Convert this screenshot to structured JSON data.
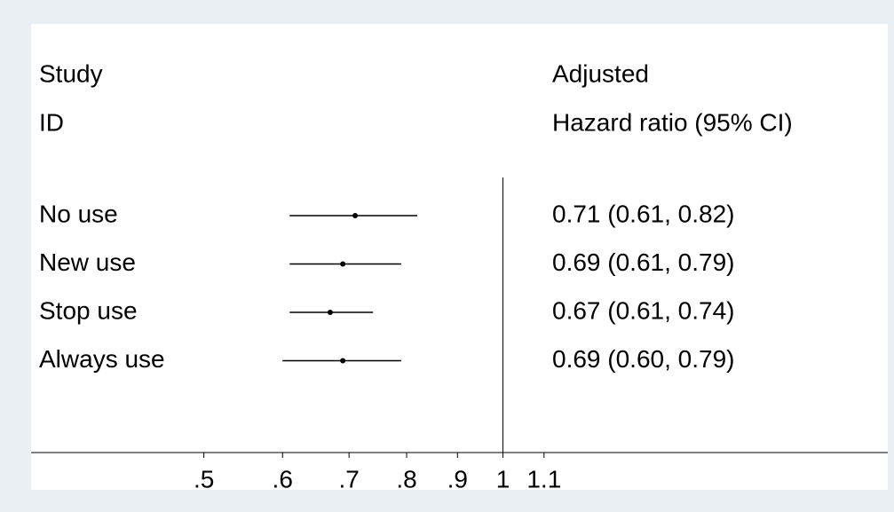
{
  "chart_data": {
    "type": "forest",
    "header_left": [
      "Study",
      "ID"
    ],
    "header_right": [
      "Adjusted",
      "Hazard ratio (95% CI)"
    ],
    "categories": [
      "No use",
      "New use",
      "Stop use",
      "Always use"
    ],
    "values": [
      0.71,
      0.69,
      0.67,
      0.69
    ],
    "lower": [
      0.61,
      0.61,
      0.61,
      0.6
    ],
    "upper": [
      0.82,
      0.79,
      0.74,
      0.79
    ],
    "value_labels": [
      "0.71 (0.61, 0.82)",
      "0.69 (0.61, 0.79)",
      "0.67 (0.61, 0.74)",
      "0.69 (0.60, 0.79)"
    ],
    "color": "#000000",
    "ref_line": 1,
    "log_x": true,
    "xlim": [
      0.335,
      2.44
    ],
    "xticks": [
      {
        "value": 0.5,
        "label": ".5"
      },
      {
        "value": 0.6,
        "label": ".6"
      },
      {
        "value": 0.7,
        "label": ".7"
      },
      {
        "value": 0.8,
        "label": ".8"
      },
      {
        "value": 0.9,
        "label": ".9"
      },
      1,
      {
        "value": 1.1,
        "label": "1.1"
      }
    ]
  }
}
